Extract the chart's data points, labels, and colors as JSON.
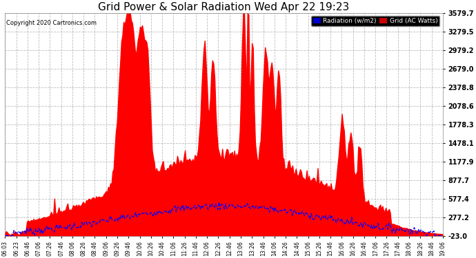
{
  "title": "Grid Power & Solar Radiation Wed Apr 22 19:23",
  "copyright": "Copyright 2020 Cartronics.com",
  "bg_color": "#ffffff",
  "plot_bg_color": "#ffffff",
  "grid_color": "#aaaaaa",
  "title_color": "#000000",
  "copyright_color": "#000000",
  "yticks": [
    -23.0,
    277.2,
    577.4,
    877.7,
    1177.9,
    1478.1,
    1778.3,
    2078.6,
    2378.8,
    2679.0,
    2979.2,
    3279.5,
    3579.7
  ],
  "ymin": -23.0,
  "ymax": 3579.7,
  "legend_radiation_label": "Radiation (w/m2)",
  "legend_grid_label": "Grid (AC Watts)",
  "legend_radiation_bg": "#0000cc",
  "legend_grid_bg": "#cc0000",
  "radiation_line_color": "#0000ff",
  "grid_fill_color": "#ff0000",
  "xtick_labels": [
    "06:03",
    "06:23",
    "06:46",
    "07:06",
    "07:26",
    "07:46",
    "08:06",
    "08:26",
    "08:46",
    "09:06",
    "09:26",
    "09:46",
    "10:06",
    "10:26",
    "10:46",
    "11:06",
    "11:26",
    "11:46",
    "12:06",
    "12:26",
    "12:46",
    "13:06",
    "13:26",
    "13:46",
    "14:06",
    "14:26",
    "14:46",
    "15:06",
    "15:26",
    "15:46",
    "16:06",
    "16:26",
    "16:46",
    "17:06",
    "17:26",
    "17:46",
    "18:06",
    "18:26",
    "18:46",
    "19:06"
  ],
  "n_points": 400,
  "seed": 7
}
